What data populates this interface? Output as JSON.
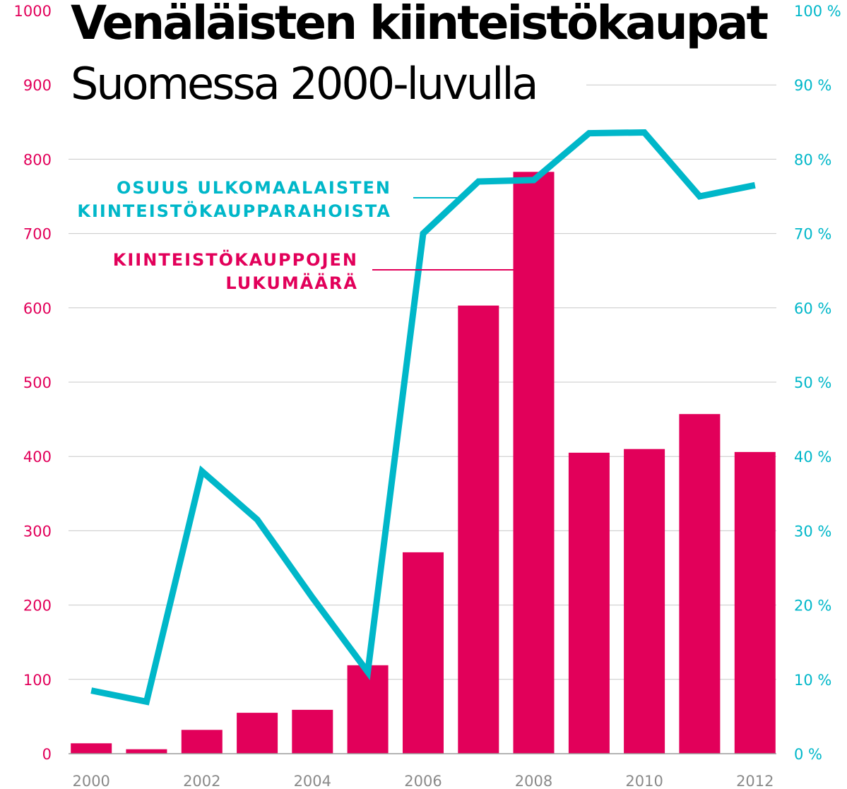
{
  "chart_data": {
    "type": "bar",
    "title": "Venäläisten kiinteistökaupat",
    "subtitle": "Suomessa 2000-luvulla",
    "categories": [
      "2000",
      "2001",
      "2002",
      "2003",
      "2004",
      "2005",
      "2006",
      "2007",
      "2008",
      "2009",
      "2010",
      "2011",
      "2012"
    ],
    "x_tick_labels": [
      "2000",
      "2002",
      "2004",
      "2006",
      "2008",
      "2010",
      "2012"
    ],
    "series": [
      {
        "name": "KIINTEISTÖKAUPPOJEN LUKUMÄÄRÄ",
        "type": "bar",
        "axis": "left",
        "color": "#e2005a",
        "values": [
          14,
          6,
          32,
          55,
          59,
          119,
          271,
          603,
          783,
          405,
          410,
          457,
          406
        ]
      },
      {
        "name": "OSUUS ULKOMAALAISTEN KIINTEISTÖKAUPPARAHOISTA",
        "type": "line",
        "axis": "right",
        "color": "#00b7c9",
        "values": [
          8.5,
          7,
          38,
          31.5,
          21,
          11,
          70,
          77,
          77.2,
          83.5,
          83.6,
          75,
          76.5
        ]
      }
    ],
    "y_left": {
      "min": 0,
      "max": 1000,
      "ticks": [
        "0",
        "100",
        "200",
        "300",
        "400",
        "500",
        "600",
        "700",
        "800",
        "900",
        "1000"
      ],
      "color": "#e2005a"
    },
    "y_right": {
      "min": 0,
      "max": 100,
      "ticks": [
        "0 %",
        "10 %",
        "20 %",
        "30 %",
        "40 %",
        "50 %",
        "60 %",
        "70 %",
        "80 %",
        "90 %",
        "100 %"
      ],
      "color": "#00b7c9"
    },
    "legend_line_lines": [
      "OSUUS ULKOMAALAISTEN",
      "KIINTEISTÖKAUPPARAHOISTA"
    ],
    "legend_bar_lines": [
      "KIINTEISTÖKAUPPOJEN",
      "LUKUMÄÄRÄ"
    ],
    "grid": true
  }
}
